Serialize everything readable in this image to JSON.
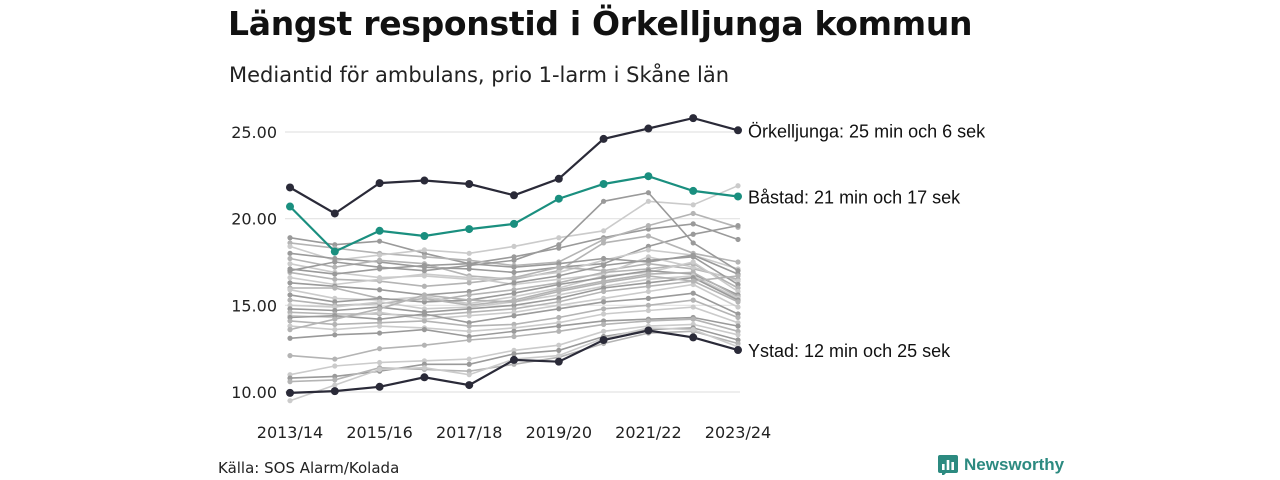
{
  "header": {
    "title": "Längst responstid i Örkelljunga kommun",
    "subtitle": "Mediantid för ambulans, prio 1-larm i Skåne län"
  },
  "footer": {
    "source": "Källa: SOS Alarm/Kolada",
    "brand": "Newsworthy"
  },
  "colors": {
    "highlight_dark": "#2a2a38",
    "highlight_green": "#1a8f7f",
    "background_lines": [
      "#9a9a9a",
      "#b4b4b4",
      "#cbcbcb"
    ],
    "grid": "#e3e3e3",
    "brand": "#2c8a80"
  },
  "chart_data": {
    "type": "line",
    "title": "Längst responstid i Örkelljunga kommun",
    "subtitle": "Mediantid för ambulans, prio 1-larm i Skåne län",
    "x": [
      "2013/14",
      "2014/15",
      "2015/16",
      "2016/17",
      "2017/18",
      "2018/19",
      "2019/20",
      "2020/21",
      "2021/22",
      "2022/23",
      "2023/24"
    ],
    "x_tick_labels": [
      "2013/14",
      "2015/16",
      "2017/18",
      "2019/20",
      "2021/22",
      "2023/24"
    ],
    "y_ticks": [
      10.0,
      15.0,
      20.0,
      25.0
    ],
    "ylim": [
      9.4,
      26
    ],
    "grid": "horizontal",
    "highlighted_series": [
      {
        "name": "Örkelljunga",
        "label": "Örkelljunga: 25 min och 6 sek",
        "color": "#2a2a38",
        "values": [
          21.8,
          20.3,
          22.05,
          22.2,
          22.0,
          21.35,
          22.3,
          24.6,
          25.2,
          25.8,
          25.1
        ]
      },
      {
        "name": "Båstad",
        "label": "Båstad: 21 min och 17 sek",
        "color": "#1a8f7f",
        "values": [
          20.7,
          18.1,
          19.3,
          19.0,
          19.4,
          19.7,
          21.15,
          22.0,
          22.45,
          21.6,
          21.28
        ]
      },
      {
        "name": "Ystad",
        "label": "Ystad: 12 min och 25 sek",
        "color": "#2a2a38",
        "values": [
          9.95,
          10.05,
          10.3,
          10.85,
          10.4,
          11.85,
          11.75,
          13.0,
          13.55,
          13.15,
          12.42
        ]
      }
    ],
    "other_series": [
      [
        18.9,
        18.5,
        18.7,
        18.0,
        17.4,
        17.8,
        18.3,
        18.9,
        19.4,
        19.7,
        18.8
      ],
      [
        18.6,
        18.3,
        18.0,
        17.8,
        17.6,
        17.3,
        17.5,
        18.8,
        19.6,
        20.3,
        19.5
      ],
      [
        18.4,
        17.6,
        17.9,
        18.2,
        18.0,
        18.4,
        18.9,
        19.3,
        21.0,
        20.8,
        21.9
      ],
      [
        18.0,
        17.7,
        17.5,
        17.2,
        17.1,
        16.9,
        17.2,
        17.4,
        18.4,
        19.1,
        19.6
      ],
      [
        17.7,
        17.2,
        17.6,
        17.4,
        16.7,
        16.5,
        17.0,
        18.6,
        19.0,
        18.0,
        17.5
      ],
      [
        17.4,
        16.9,
        16.6,
        16.7,
        16.5,
        16.6,
        16.9,
        17.6,
        18.2,
        17.9,
        17.1
      ],
      [
        17.1,
        16.8,
        17.1,
        17.3,
        17.4,
        17.2,
        17.4,
        17.7,
        17.5,
        17.9,
        16.8
      ],
      [
        16.9,
        16.5,
        16.4,
        16.1,
        16.3,
        16.6,
        17.2,
        17.0,
        17.4,
        17.1,
        16.5
      ],
      [
        16.6,
        16.2,
        16.5,
        16.8,
        16.6,
        16.2,
        16.5,
        16.8,
        17.8,
        17.2,
        16.4
      ],
      [
        16.3,
        16.1,
        15.9,
        15.6,
        15.8,
        16.3,
        16.7,
        17.3,
        17.6,
        17.8,
        16.2
      ],
      [
        16.0,
        16.0,
        15.4,
        15.2,
        15.6,
        15.9,
        16.3,
        16.9,
        17.1,
        17.4,
        16.0
      ],
      [
        15.9,
        15.4,
        15.3,
        15.5,
        15.1,
        15.5,
        16.0,
        16.7,
        16.9,
        17.5,
        15.8
      ],
      [
        15.6,
        15.2,
        15.4,
        15.2,
        15.3,
        15.7,
        16.2,
        16.6,
        17.0,
        16.8,
        15.6
      ],
      [
        15.3,
        15.0,
        15.1,
        15.4,
        15.0,
        15.3,
        15.9,
        16.4,
        16.8,
        16.9,
        15.5
      ],
      [
        15.0,
        14.9,
        15.2,
        14.8,
        14.9,
        15.2,
        15.6,
        16.1,
        16.5,
        16.7,
        15.4
      ],
      [
        14.8,
        14.7,
        14.9,
        14.6,
        14.8,
        15.0,
        15.4,
        16.0,
        16.3,
        16.6,
        15.3
      ],
      [
        14.6,
        14.5,
        14.5,
        14.4,
        14.6,
        14.8,
        15.2,
        15.8,
        16.1,
        16.4,
        15.2
      ],
      [
        14.4,
        14.3,
        14.6,
        14.2,
        14.4,
        14.6,
        15.0,
        15.4,
        15.8,
        16.2,
        14.9
      ],
      [
        14.3,
        14.4,
        14.2,
        14.5,
        14.0,
        14.4,
        14.8,
        15.2,
        15.4,
        15.7,
        14.5
      ],
      [
        14.1,
        13.9,
        14.0,
        14.1,
        13.8,
        13.9,
        14.3,
        14.8,
        15.0,
        15.3,
        14.3
      ],
      [
        13.8,
        13.6,
        13.8,
        13.7,
        13.5,
        13.7,
        14.0,
        14.5,
        14.7,
        14.9,
        14.0
      ],
      [
        13.1,
        13.3,
        13.4,
        13.6,
        13.2,
        13.5,
        13.8,
        14.1,
        14.2,
        14.3,
        13.8
      ],
      [
        12.1,
        11.9,
        12.5,
        12.7,
        13.0,
        13.2,
        13.5,
        13.9,
        14.1,
        14.2,
        13.5
      ],
      [
        11.0,
        11.5,
        11.7,
        11.8,
        11.9,
        12.4,
        12.7,
        13.5,
        13.8,
        13.9,
        13.3
      ],
      [
        10.8,
        10.9,
        11.2,
        11.6,
        11.6,
        12.2,
        12.4,
        13.2,
        13.6,
        13.7,
        13.0
      ],
      [
        10.6,
        10.7,
        11.4,
        11.3,
        11.2,
        11.6,
        12.0,
        12.8,
        13.4,
        13.5,
        12.8
      ],
      [
        9.5,
        10.4,
        11.3,
        11.4,
        11.0,
        11.9,
        12.1,
        13.1,
        13.7,
        13.6,
        12.6
      ],
      [
        17.0,
        17.5,
        17.2,
        17.0,
        17.3,
        17.6,
        18.5,
        21.0,
        21.5,
        18.6,
        17.0
      ],
      [
        13.6,
        14.2,
        14.8,
        15.6,
        15.3,
        15.2,
        15.8,
        16.3,
        16.7,
        16.4,
        16.7
      ]
    ]
  }
}
